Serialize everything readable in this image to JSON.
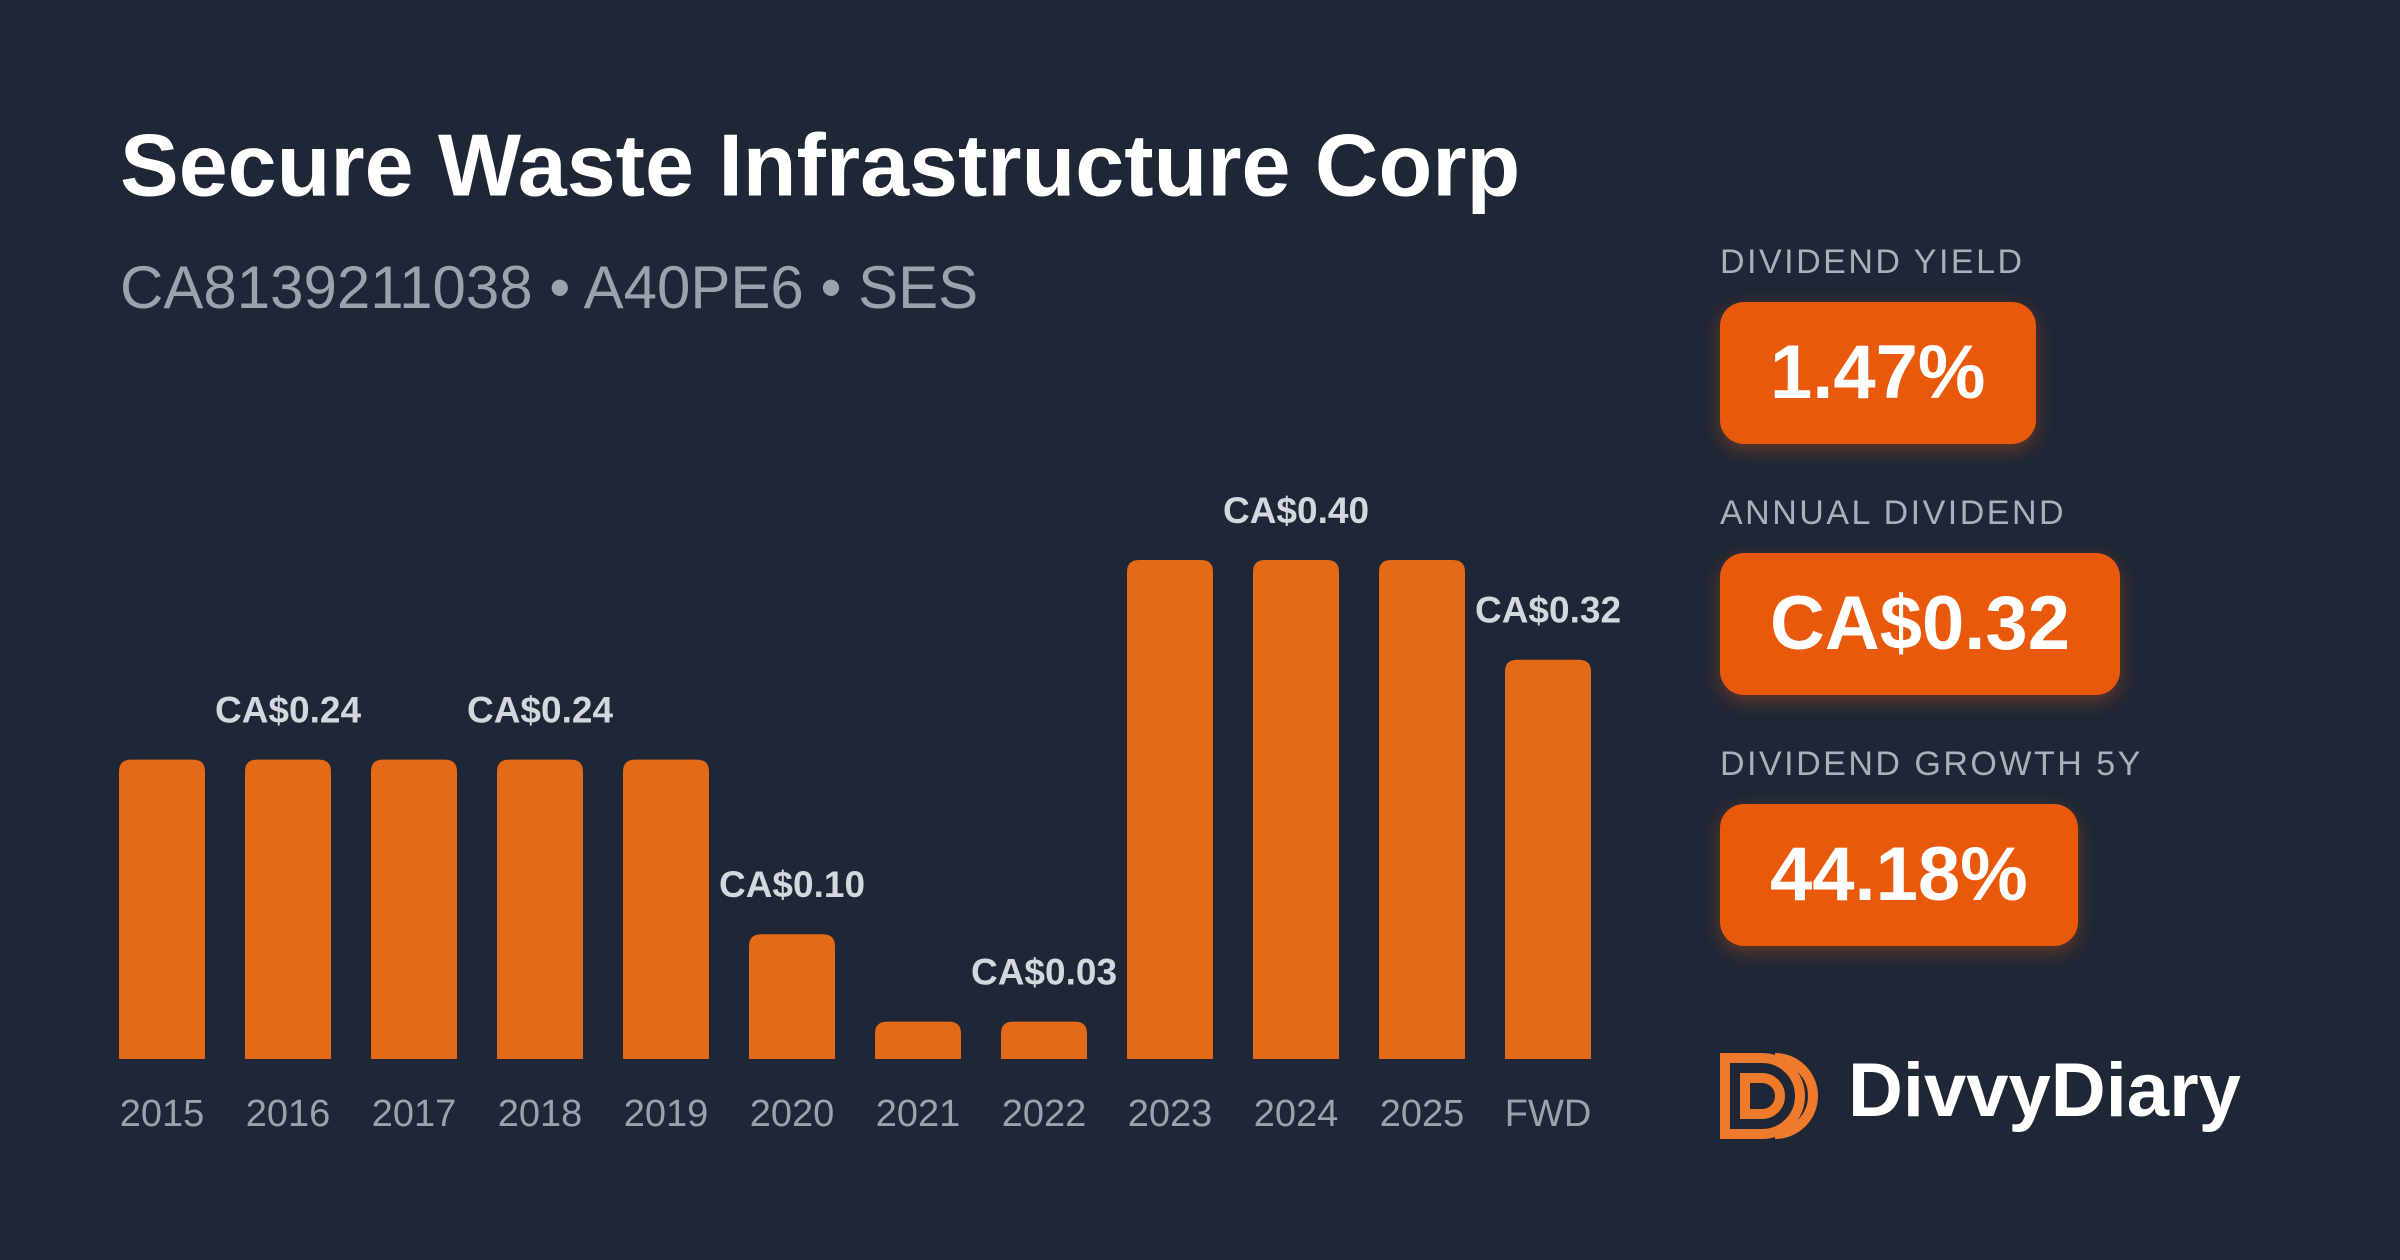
{
  "chart_data": {
    "type": "bar",
    "title": "Secure Waste Infrastructure Corp",
    "subtitle": "CA8139211038 • A40PE6 • SES",
    "categories": [
      "2015",
      "2016",
      "2017",
      "2018",
      "2019",
      "2020",
      "2021",
      "2022",
      "2023",
      "2024",
      "2025",
      "FWD"
    ],
    "values": [
      0.24,
      0.24,
      0.24,
      0.24,
      0.24,
      0.1,
      0.03,
      0.03,
      0.4,
      0.4,
      0.4,
      0.32
    ],
    "value_labels": [
      null,
      "CA$0.24",
      null,
      "CA$0.24",
      null,
      "CA$0.10",
      null,
      "CA$0.03",
      null,
      "CA$0.40",
      null,
      "CA$0.32"
    ],
    "color": "#e36a17"
  },
  "stats": [
    {
      "label": "DIVIDEND YIELD",
      "value": "1.47%"
    },
    {
      "label": "ANNUAL DIVIDEND",
      "value": "CA$0.32"
    },
    {
      "label": "DIVIDEND GROWTH 5Y",
      "value": "44.18%"
    }
  ],
  "brand": "DivvyDiary"
}
